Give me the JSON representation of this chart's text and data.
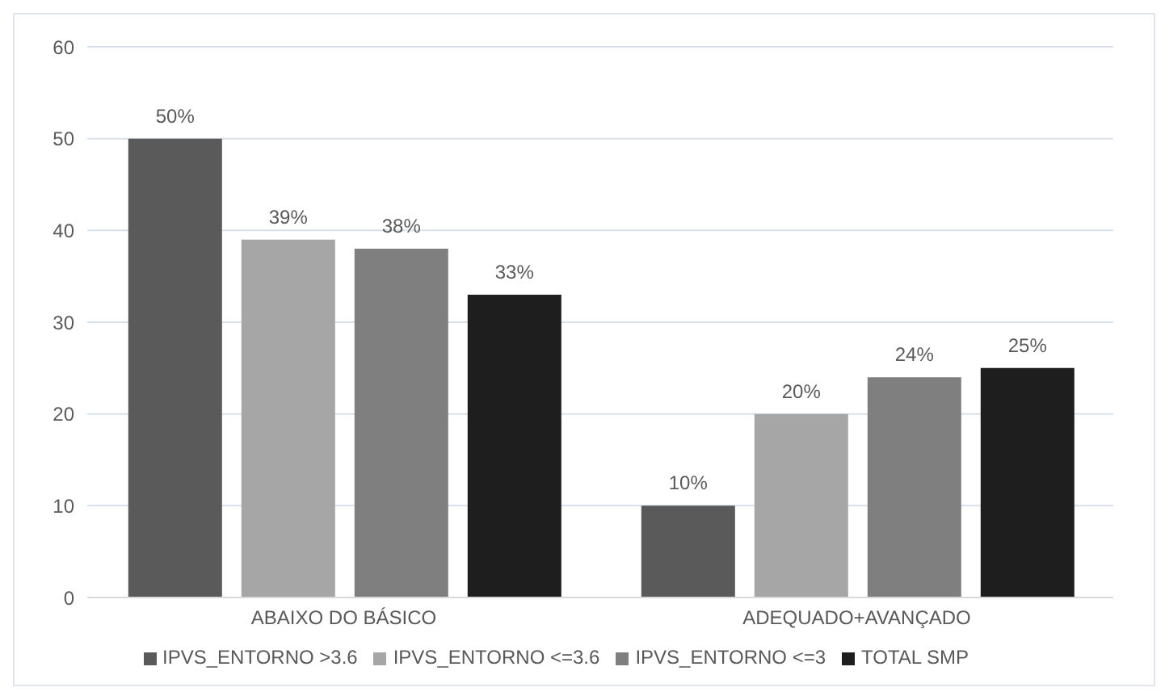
{
  "chart_data": {
    "type": "bar",
    "categories": [
      "ABAIXO DO BÁSICO",
      "ADEQUADO+AVANÇADO"
    ],
    "series": [
      {
        "name": "IPVS_ENTORNO >3.6",
        "color": "#5a5a5a",
        "values": [
          50,
          10
        ],
        "value_labels": [
          "50%",
          "10%"
        ]
      },
      {
        "name": "IPVS_ENTORNO <=3.6",
        "color": "#a6a6a6",
        "values": [
          39,
          20
        ],
        "value_labels": [
          "39%",
          "20%"
        ]
      },
      {
        "name": "IPVS_ENTORNO <=3",
        "color": "#7f7f7f",
        "values": [
          38,
          24
        ],
        "value_labels": [
          "38%",
          "24%"
        ]
      },
      {
        "name": "TOTAL SMP",
        "color": "#1e1e1e",
        "values": [
          33,
          25
        ],
        "value_labels": [
          "33%",
          "25%"
        ]
      }
    ],
    "ylim": [
      0,
      60
    ],
    "yticks": [
      0,
      10,
      20,
      30,
      40,
      50,
      60
    ],
    "grid": "y",
    "legend": "bottom"
  }
}
